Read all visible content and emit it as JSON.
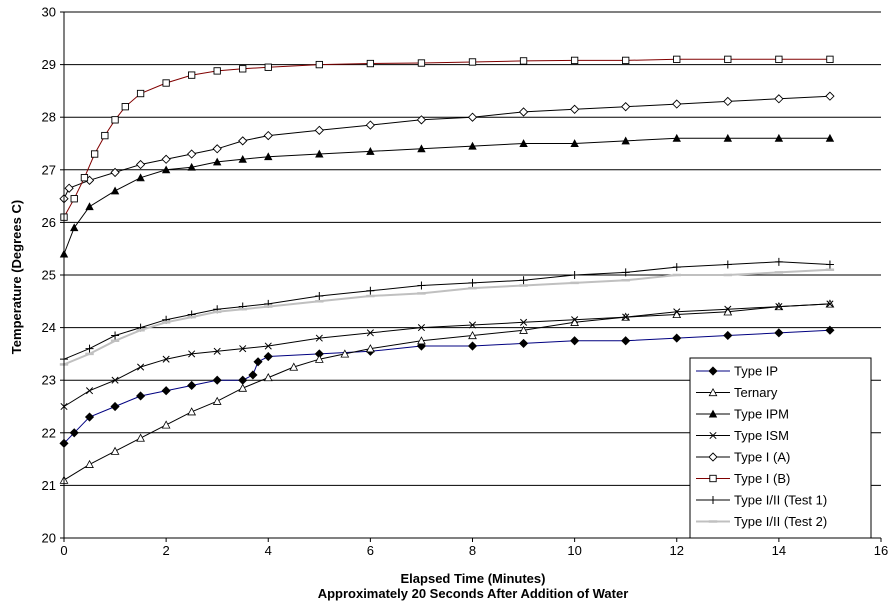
{
  "chart_data": {
    "type": "scatter",
    "xlabel": "Elapsed Time (Minutes)",
    "xlabel_sub": "Approximately 20 Seconds After Addition of Water",
    "ylabel": "Temperature (Degrees C)",
    "xlim": [
      0,
      16
    ],
    "ylim": [
      20,
      30
    ],
    "x_ticks": [
      "0",
      "2",
      "4",
      "6",
      "8",
      "10",
      "12",
      "14",
      "16"
    ],
    "y_ticks": [
      "20",
      "21",
      "22",
      "23",
      "24",
      "25",
      "26",
      "27",
      "28",
      "29",
      "30"
    ],
    "grid": "horizontal",
    "legend_position": "bottom-right",
    "series": [
      {
        "name": "Type IP",
        "marker": "diamond-filled",
        "color": "#000000",
        "line_color": "#000080",
        "x": [
          0,
          0.2,
          0.5,
          1,
          1.5,
          2,
          2.5,
          3,
          3.5,
          3.7,
          3.8,
          4,
          5,
          6,
          7,
          8,
          9,
          10,
          11,
          12,
          13,
          14,
          15
        ],
        "y": [
          21.8,
          22.0,
          22.3,
          22.5,
          22.7,
          22.8,
          22.9,
          23.0,
          23.0,
          23.1,
          23.35,
          23.45,
          23.5,
          23.55,
          23.65,
          23.65,
          23.7,
          23.75,
          23.75,
          23.8,
          23.85,
          23.9,
          23.95
        ]
      },
      {
        "name": "Ternary",
        "marker": "triangle-open",
        "color": "#000000",
        "line_color": "#000000",
        "x": [
          0,
          0.5,
          1,
          1.5,
          2,
          2.5,
          3,
          3.5,
          4,
          4.5,
          5,
          5.5,
          6,
          7,
          8,
          9,
          10,
          11,
          12,
          13,
          14,
          15
        ],
        "y": [
          21.1,
          21.4,
          21.65,
          21.9,
          22.15,
          22.4,
          22.6,
          22.85,
          23.05,
          23.25,
          23.4,
          23.5,
          23.6,
          23.75,
          23.85,
          23.95,
          24.1,
          24.2,
          24.25,
          24.3,
          24.4,
          24.45
        ]
      },
      {
        "name": "Type IPM",
        "marker": "triangle-filled",
        "color": "#000000",
        "line_color": "#000000",
        "x": [
          0,
          0.2,
          0.5,
          1,
          1.5,
          2,
          2.5,
          3,
          3.5,
          4,
          5,
          6,
          7,
          8,
          9,
          10,
          11,
          12,
          13,
          14,
          15
        ],
        "y": [
          25.4,
          25.9,
          26.3,
          26.6,
          26.85,
          27.0,
          27.05,
          27.15,
          27.2,
          27.25,
          27.3,
          27.35,
          27.4,
          27.45,
          27.5,
          27.5,
          27.55,
          27.6,
          27.6,
          27.6,
          27.6
        ]
      },
      {
        "name": "Type ISM",
        "marker": "x",
        "color": "#000000",
        "line_color": "#000000",
        "x": [
          0,
          0.5,
          1,
          1.5,
          2,
          2.5,
          3,
          3.5,
          4,
          5,
          6,
          7,
          8,
          9,
          10,
          11,
          12,
          13,
          14,
          15
        ],
        "y": [
          22.5,
          22.8,
          23.0,
          23.25,
          23.4,
          23.5,
          23.55,
          23.6,
          23.65,
          23.8,
          23.9,
          24.0,
          24.05,
          24.1,
          24.15,
          24.2,
          24.3,
          24.35,
          24.4,
          24.45
        ]
      },
      {
        "name": "Type I (A)",
        "marker": "diamond-open",
        "color": "#000000",
        "line_color": "#000000",
        "x": [
          0,
          0.1,
          0.5,
          1,
          1.5,
          2,
          2.5,
          3,
          3.5,
          4,
          5,
          6,
          7,
          8,
          9,
          10,
          11,
          12,
          13,
          14,
          15
        ],
        "y": [
          26.45,
          26.65,
          26.8,
          26.95,
          27.1,
          27.2,
          27.3,
          27.4,
          27.55,
          27.65,
          27.75,
          27.85,
          27.95,
          28.0,
          28.1,
          28.15,
          28.2,
          28.25,
          28.3,
          28.35,
          28.4
        ]
      },
      {
        "name": "Type I (B)",
        "marker": "square-open",
        "color": "#000000",
        "line_color": "#800000",
        "x": [
          0,
          0.2,
          0.4,
          0.6,
          0.8,
          1,
          1.2,
          1.5,
          2,
          2.5,
          3,
          3.5,
          4,
          5,
          6,
          7,
          8,
          9,
          10,
          11,
          12,
          13,
          14,
          15
        ],
        "y": [
          26.1,
          26.45,
          26.85,
          27.3,
          27.65,
          27.95,
          28.2,
          28.45,
          28.65,
          28.8,
          28.88,
          28.92,
          28.95,
          29.0,
          29.02,
          29.03,
          29.05,
          29.07,
          29.08,
          29.08,
          29.1,
          29.1,
          29.1,
          29.1
        ]
      },
      {
        "name": "Type I/II (Test 1)",
        "marker": "plus",
        "color": "#000000",
        "line_color": "#000000",
        "x": [
          0,
          0.5,
          1,
          1.5,
          2,
          2.5,
          3,
          3.5,
          4,
          5,
          6,
          7,
          8,
          9,
          10,
          11,
          12,
          13,
          14,
          15
        ],
        "y": [
          23.4,
          23.6,
          23.85,
          24.0,
          24.15,
          24.25,
          24.35,
          24.4,
          24.45,
          24.6,
          24.7,
          24.8,
          24.85,
          24.9,
          25.0,
          25.05,
          25.15,
          25.2,
          25.25,
          25.2
        ]
      },
      {
        "name": "Type I/II (Test 2)",
        "marker": "dash",
        "color": "#c0c0c0",
        "line_color": "#c0c0c0",
        "x": [
          0,
          0.5,
          1,
          1.5,
          2,
          2.5,
          3,
          3.5,
          4,
          5,
          6,
          7,
          8,
          9,
          10,
          11,
          12,
          13,
          14,
          15
        ],
        "y": [
          23.3,
          23.5,
          23.75,
          23.95,
          24.1,
          24.2,
          24.3,
          24.35,
          24.4,
          24.5,
          24.6,
          24.65,
          24.75,
          24.8,
          24.85,
          24.9,
          25.0,
          25.0,
          25.05,
          25.1
        ]
      }
    ]
  }
}
